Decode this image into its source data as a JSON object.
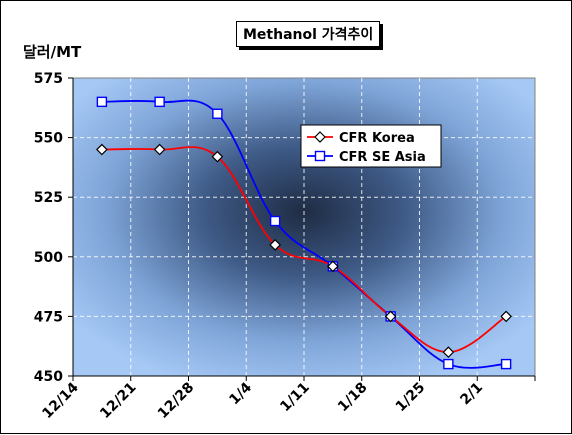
{
  "chart_data": {
    "type": "line",
    "title": "Methanol 가격추이",
    "ylabel": "달러/MT",
    "xlabel": "",
    "ylim": [
      450,
      575
    ],
    "yticks": [
      450,
      475,
      500,
      525,
      550,
      575
    ],
    "grid": true,
    "legend_position": "center-right",
    "categories": [
      "12/14",
      "12/21",
      "12/28",
      "1/4",
      "1/11",
      "1/18",
      "1/25",
      "2/1"
    ],
    "series": [
      {
        "name": "CFR Korea",
        "color": "#ff0000",
        "marker": "diamond",
        "values": [
          545,
          545,
          542,
          505,
          496,
          475,
          460,
          475
        ]
      },
      {
        "name": "CFR SE Asia",
        "color": "#0000ff",
        "marker": "square",
        "values": [
          565,
          565,
          560,
          515,
          496,
          475,
          455,
          455
        ]
      }
    ]
  }
}
